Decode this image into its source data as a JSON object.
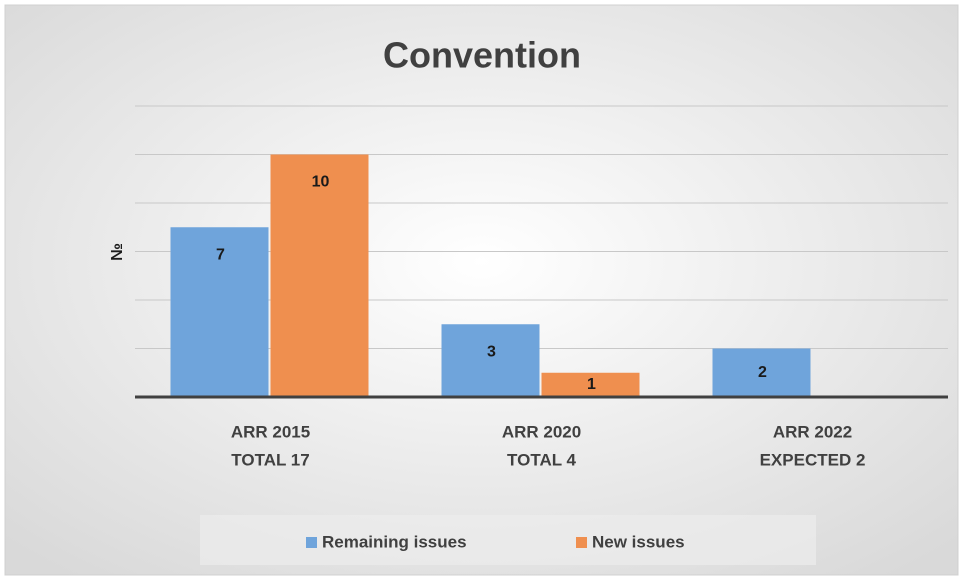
{
  "chart_data": {
    "type": "bar",
    "title": "Convention",
    "y_label": "№",
    "categories": [
      [
        "ARR 2015",
        "TOTAL 17"
      ],
      [
        "ARR 2020",
        "TOTAL 4"
      ],
      [
        "ARR 2022",
        "EXPECTED 2"
      ]
    ],
    "series": [
      {
        "name": "Remaining issues",
        "color": "#6fa4db",
        "values": [
          7,
          3,
          2
        ]
      },
      {
        "name": "New issues",
        "color": "#ef8f4f",
        "values": [
          10,
          1,
          null
        ]
      }
    ],
    "ylim": [
      0,
      12
    ],
    "yticks": [
      0,
      2,
      4,
      6,
      8,
      10,
      12
    ],
    "grid": true,
    "legend": "bottom"
  }
}
